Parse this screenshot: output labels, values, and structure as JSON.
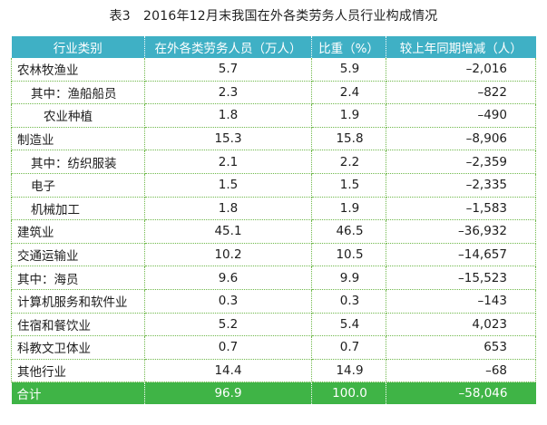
{
  "title": "表3　2016年12月末我国在外各类劳务人员行业构成情况",
  "headers": [
    "行业类别",
    "在外各类劳务人员（万人）",
    "比重（%）",
    "较上年同期增减（人）"
  ],
  "rows": [
    {
      "name": "农林牧渔业",
      "people": "5.7",
      "share": "5.9",
      "change": "–2,016",
      "indent": false
    },
    {
      "name": "其中：渔船船员",
      "people": "2.3",
      "share": "2.4",
      "change": "–822",
      "indent": true
    },
    {
      "name": "农业种植",
      "people": "1.8",
      "share": "1.9",
      "change": "–490",
      "indent": true
    },
    {
      "name": "制造业",
      "people": "15.3",
      "share": "15.8",
      "change": "–8,906",
      "indent": false
    },
    {
      "name": "其中：纺织服装",
      "people": "2.1",
      "share": "2.2",
      "change": "–2,359",
      "indent": true
    },
    {
      "name": "电子",
      "people": "1.5",
      "share": "1.5",
      "change": "–2,335",
      "indent": true
    },
    {
      "name": "机械加工",
      "people": "1.8",
      "share": "1.9",
      "change": "–1,583",
      "indent": true
    },
    {
      "name": "建筑业",
      "people": "45.1",
      "share": "46.5",
      "change": "–36,932",
      "indent": false
    },
    {
      "name": "交通运输业",
      "people": "10.2",
      "share": "10.5",
      "change": "–14,657",
      "indent": false
    },
    {
      "name": "其中：海员",
      "people": "9.6",
      "share": "9.9",
      "change": "–15,523",
      "indent": false
    },
    {
      "name": "计算机服务和软件业",
      "people": "0.3",
      "share": "0.3",
      "change": "–143",
      "indent": false
    },
    {
      "name": "住宿和餐饮业",
      "people": "5.2",
      "share": "5.4",
      "change": "4,023",
      "indent": false
    },
    {
      "name": "科教文卫体业",
      "people": "0.7",
      "share": "0.7",
      "change": "653",
      "indent": false
    },
    {
      "name": "其他行业",
      "people": "14.4",
      "share": "14.9",
      "change": "–68",
      "indent": false
    }
  ],
  "total": {
    "name": "合计",
    "people": "96.9",
    "share": "100.0",
    "change": "–58,046"
  },
  "colors": {
    "header_bg": "#3fb0c5",
    "total_bg": "#3fb446",
    "grid_line": "#6fb84a"
  }
}
